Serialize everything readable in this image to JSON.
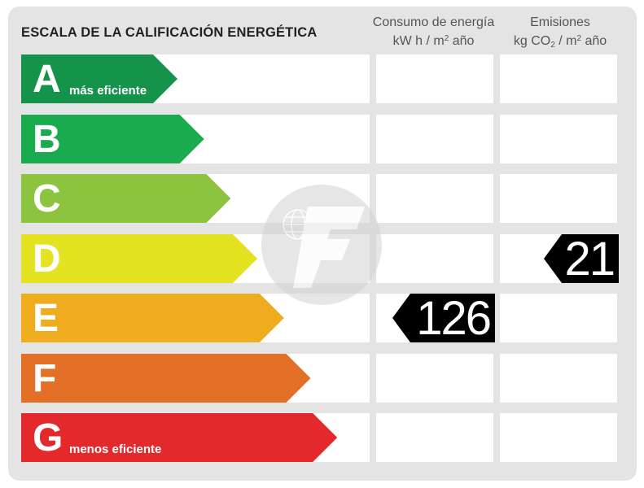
{
  "title": "ESCALA DE LA CALIFICACIÓN ENERGÉTICA",
  "columns": {
    "consumo": {
      "line1": "Consumo de energía",
      "line2_a": "kW h  / m",
      "line2_sup": "2",
      "line2_b": " año"
    },
    "emisiones": {
      "line1": "Emisiones",
      "line2_a": "kg CO",
      "line2_sub": "2",
      "line2_b": "  / m",
      "line2_sup": "2",
      "line2_c": " año"
    }
  },
  "ratings": [
    {
      "letter": "A",
      "label": "más eficiente",
      "color": "#15934a"
    },
    {
      "letter": "B",
      "label": "",
      "color": "#1aab4e"
    },
    {
      "letter": "C",
      "label": "",
      "color": "#8cc43f"
    },
    {
      "letter": "D",
      "label": "",
      "color": "#e4e321"
    },
    {
      "letter": "E",
      "label": "",
      "color": "#f0ac1f"
    },
    {
      "letter": "F",
      "label": "",
      "color": "#e46f27"
    },
    {
      "letter": "G",
      "label": "menos eficiente",
      "color": "#e3292b"
    }
  ],
  "consumo_value": {
    "value": "126",
    "rating": "E"
  },
  "emisiones_value": {
    "value": "21",
    "rating": "D"
  }
}
